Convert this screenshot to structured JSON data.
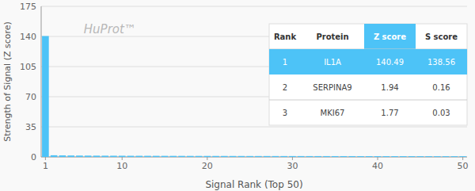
{
  "chart_data": {
    "type": "bar",
    "title": "HuProt™",
    "xlabel": "Signal Rank (Top 50)",
    "ylabel": "Strength of Signal (Z score)",
    "x": [
      1,
      2,
      3,
      4,
      5,
      6,
      7,
      8,
      9,
      10,
      11,
      12,
      13,
      14,
      15,
      16,
      17,
      18,
      19,
      20,
      21,
      22,
      23,
      24,
      25,
      26,
      27,
      28,
      29,
      30,
      31,
      32,
      33,
      34,
      35,
      36,
      37,
      38,
      39,
      40,
      41,
      42,
      43,
      44,
      45,
      46,
      47,
      48,
      49,
      50
    ],
    "values": [
      140.49,
      1.94,
      1.77,
      1.65,
      1.58,
      1.52,
      1.47,
      1.43,
      1.4,
      1.37,
      1.34,
      1.31,
      1.29,
      1.27,
      1.25,
      1.23,
      1.21,
      1.19,
      1.17,
      1.16,
      1.14,
      1.13,
      1.11,
      1.1,
      1.08,
      1.07,
      1.06,
      1.04,
      1.03,
      1.02,
      1.01,
      0.99,
      0.98,
      0.97,
      0.96,
      0.95,
      0.94,
      0.93,
      0.92,
      0.91,
      0.9,
      0.89,
      0.88,
      0.87,
      0.86,
      0.85,
      0.84,
      0.83,
      0.82,
      0.81
    ],
    "color": "#4dc3f7",
    "xlim": [
      0.5,
      50.5
    ],
    "xticks": [
      1,
      10,
      20,
      30,
      40,
      50
    ],
    "ylim": [
      0,
      175
    ],
    "yticks": [
      0,
      35,
      70,
      105,
      140,
      175
    ],
    "grid": true,
    "table": {
      "headers": [
        "Rank",
        "Protein",
        "Z score",
        "S score"
      ],
      "rows": [
        [
          "1",
          "IL1A",
          "140.49",
          "138.56"
        ],
        [
          "2",
          "SERPINA9",
          "1.94",
          "0.16"
        ],
        [
          "3",
          "MKI67",
          "1.77",
          "0.03"
        ]
      ]
    }
  }
}
